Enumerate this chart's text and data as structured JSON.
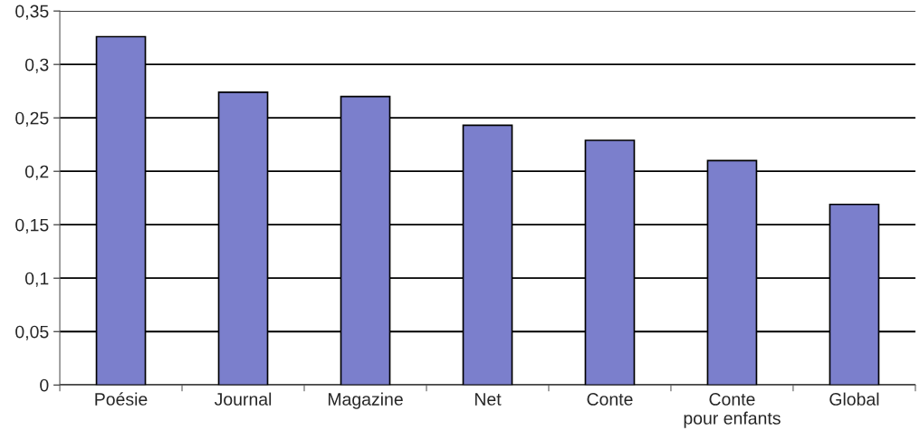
{
  "chart_data": {
    "type": "bar",
    "categories": [
      "Poésie",
      "Journal",
      "Magazine",
      "Net",
      "Conte",
      "Conte\npour enfants",
      "Global"
    ],
    "values": [
      0.326,
      0.274,
      0.27,
      0.243,
      0.229,
      0.21,
      0.169
    ],
    "color": "#7b7fcc",
    "ylim": [
      0,
      0.35
    ],
    "yticks": [
      0,
      {
        "value": 0.05,
        "label": "0,05"
      },
      {
        "value": 0.1,
        "label": "0,1"
      },
      {
        "value": 0.15,
        "label": "0,15"
      },
      {
        "value": 0.2,
        "label": "0,2"
      },
      {
        "value": 0.25,
        "label": "0,25"
      },
      {
        "value": 0.3,
        "label": "0,3"
      },
      {
        "value": 0.35,
        "label": "0,35"
      }
    ],
    "grid": "y"
  }
}
